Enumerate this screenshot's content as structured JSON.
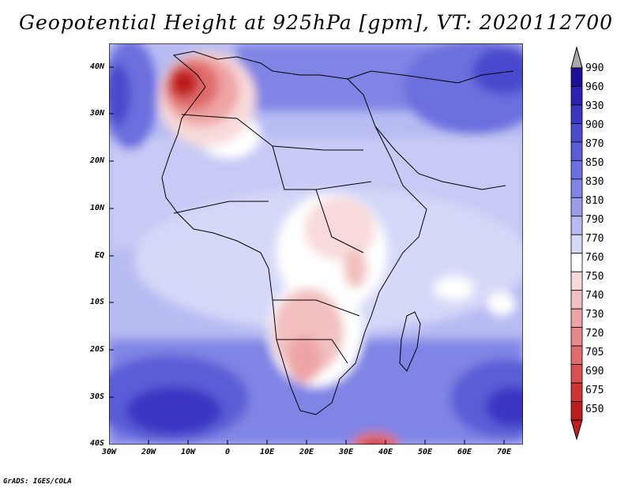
{
  "title": "Geopotential Height at 925hPa [gpm], VT: 2020112700",
  "credit": "GrADS: IGES/COLA",
  "lat_labels": [
    "40N",
    "30N",
    "20N",
    "10N",
    "EQ",
    "10S",
    "20S",
    "30S",
    "40S"
  ],
  "lon_labels": [
    "30W",
    "20W",
    "10W",
    "0",
    "10E",
    "20E",
    "30E",
    "40E",
    "50E",
    "60E",
    "70E"
  ],
  "colorbar": {
    "levels": [
      "990",
      "960",
      "930",
      "900",
      "870",
      "850",
      "830",
      "810",
      "790",
      "770",
      "760",
      "750",
      "740",
      "730",
      "720",
      "705",
      "690",
      "675",
      "650"
    ],
    "colors": [
      "#1c0f9a",
      "#2a22b0",
      "#3a36c2",
      "#4a4ace",
      "#5a5dd6",
      "#6c70de",
      "#8084e4",
      "#9a9dea",
      "#b8bbf2",
      "#d6d8f8",
      "#ffffff",
      "#f8dada",
      "#f2c0c0",
      "#eea4a4",
      "#e88888",
      "#e06c6c",
      "#d85050",
      "#ce3636",
      "#be1e1e"
    ],
    "top_arrow_color": "#a8a8a8"
  }
}
